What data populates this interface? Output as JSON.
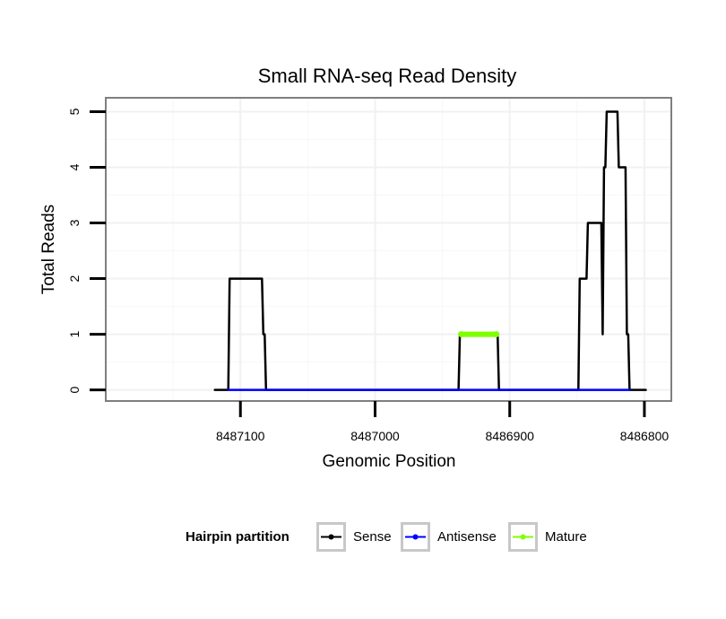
{
  "chart_data": {
    "type": "line",
    "title": "Small RNA-seq Read Density",
    "xlabel": "Genomic Position",
    "ylabel": "Total Reads",
    "xlim": [
      8487200,
      8486780
    ],
    "x_reversed": true,
    "ylim": [
      -0.2,
      5.25
    ],
    "xticks": [
      8487100,
      8487000,
      8486900,
      8486800
    ],
    "xtick_labels": [
      "8487100",
      "8487000",
      "8486900",
      "8486800"
    ],
    "yticks": [
      0,
      1,
      2,
      3,
      4,
      5
    ],
    "ytick_labels": [
      "0",
      "1",
      "2",
      "3",
      "4",
      "5"
    ],
    "grid": true,
    "legend": {
      "title": "Hairpin partition",
      "position": "bottom",
      "entries": [
        {
          "label": "Sense",
          "color": "#000000"
        },
        {
          "label": "Antisense",
          "color": "#0000ff"
        },
        {
          "label": "Mature",
          "color": "#7fff00"
        }
      ]
    },
    "series": [
      {
        "name": "Sense",
        "color": "#000000",
        "points": [
          [
            8487119,
            0
          ],
          [
            8487109,
            0
          ],
          [
            8487108,
            2
          ],
          [
            8487084,
            2
          ],
          [
            8487083,
            1
          ],
          [
            8487082,
            1
          ],
          [
            8487081,
            0
          ],
          [
            8486938,
            0
          ],
          [
            8486937,
            1
          ],
          [
            8486909,
            1
          ],
          [
            8486908,
            0
          ],
          [
            8486849,
            0
          ],
          [
            8486848,
            2
          ],
          [
            8486843,
            2
          ],
          [
            8486842,
            3
          ],
          [
            8486832,
            3
          ],
          [
            8486831,
            1
          ],
          [
            8486830,
            4
          ],
          [
            8486829,
            4
          ],
          [
            8486828,
            5
          ],
          [
            8486820,
            5
          ],
          [
            8486819,
            4
          ],
          [
            8486814,
            4
          ],
          [
            8486813,
            1
          ],
          [
            8486812,
            1
          ],
          [
            8486811,
            0
          ],
          [
            8486799,
            0
          ]
        ]
      },
      {
        "name": "Antisense",
        "color": "#0000ff",
        "points": [
          [
            8487109,
            0
          ],
          [
            8487081,
            0
          ],
          [
            8486938,
            0
          ],
          [
            8486908,
            0
          ],
          [
            8486849,
            0
          ],
          [
            8486811,
            0
          ]
        ]
      },
      {
        "name": "Mature",
        "color": "#7fff00",
        "points": [
          [
            8486936,
            1
          ],
          [
            8486910,
            1
          ]
        ]
      }
    ]
  }
}
